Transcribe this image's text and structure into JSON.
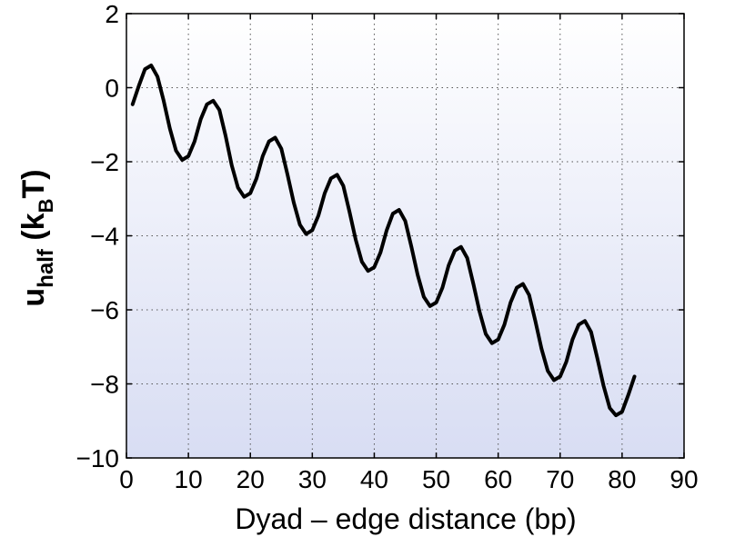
{
  "chart_data": {
    "type": "line",
    "xlabel": "Dyad – edge distance (bp)",
    "ylabel": {
      "base": "u",
      "sub": "half",
      "paren_open": " (k",
      "sub2": "B",
      "paren_close": "T)"
    },
    "xlim": [
      0,
      90
    ],
    "ylim": [
      -10,
      2
    ],
    "xticks": [
      0,
      10,
      20,
      30,
      40,
      50,
      60,
      70,
      80,
      90
    ],
    "yticks": [
      2,
      0,
      -2,
      -4,
      -6,
      -8,
      -10
    ],
    "xtick_labels": [
      "0",
      "10",
      "20",
      "30",
      "40",
      "50",
      "60",
      "70",
      "80",
      "90"
    ],
    "ytick_labels": [
      "2",
      "0",
      "−2",
      "−4",
      "−6",
      "−8",
      "−10"
    ],
    "grid": true,
    "background_gradient": [
      "#ffffff",
      "#d8ddf3"
    ],
    "line_color": "#000000",
    "series": [
      {
        "x": [
          1,
          2,
          3,
          4,
          5,
          6,
          7,
          8,
          9,
          10,
          11,
          12,
          13,
          14,
          15,
          16,
          17,
          18,
          19,
          20,
          21,
          22,
          23,
          24,
          25,
          26,
          27,
          28,
          29,
          30,
          31,
          32,
          33,
          34,
          35,
          36,
          37,
          38,
          39,
          40,
          41,
          42,
          43,
          44,
          45,
          46,
          47,
          48,
          49,
          50,
          51,
          52,
          53,
          54,
          55,
          56,
          57,
          58,
          59,
          60,
          61,
          62,
          63,
          64,
          65,
          66,
          67,
          68,
          69,
          70,
          71,
          72,
          73,
          74,
          75,
          76,
          77,
          78,
          79,
          80,
          81,
          82
        ],
        "values": [
          -0.45,
          0.05,
          0.5,
          0.6,
          0.3,
          -0.35,
          -1.1,
          -1.7,
          -1.95,
          -1.85,
          -1.45,
          -0.85,
          -0.45,
          -0.35,
          -0.6,
          -1.3,
          -2.1,
          -2.7,
          -2.95,
          -2.85,
          -2.45,
          -1.85,
          -1.45,
          -1.35,
          -1.65,
          -2.35,
          -3.1,
          -3.7,
          -3.95,
          -3.85,
          -3.45,
          -2.85,
          -2.45,
          -2.35,
          -2.65,
          -3.35,
          -4.1,
          -4.7,
          -4.95,
          -4.85,
          -4.45,
          -3.85,
          -3.4,
          -3.3,
          -3.6,
          -4.3,
          -5.05,
          -5.65,
          -5.9,
          -5.8,
          -5.4,
          -4.8,
          -4.4,
          -4.3,
          -4.6,
          -5.3,
          -6.05,
          -6.65,
          -6.9,
          -6.8,
          -6.4,
          -5.8,
          -5.4,
          -5.3,
          -5.6,
          -6.3,
          -7.05,
          -7.65,
          -7.9,
          -7.8,
          -7.4,
          -6.8,
          -6.4,
          -6.3,
          -6.6,
          -7.3,
          -8.05,
          -8.65,
          -8.85,
          -8.75,
          -8.3,
          -7.8
        ]
      }
    ]
  }
}
